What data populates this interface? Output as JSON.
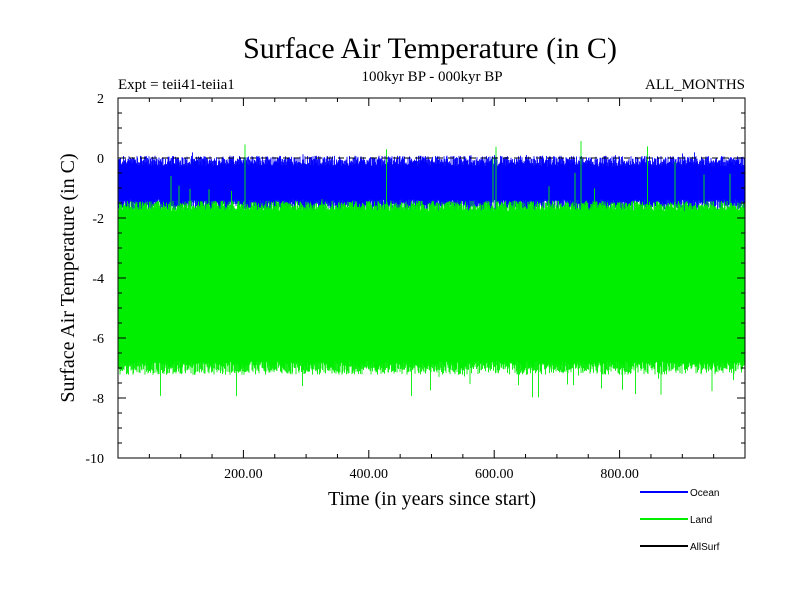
{
  "chart_data": {
    "type": "area",
    "title": "Surface Air Temperature (in C)",
    "subtitle": "100kyr BP - 000kyr BP",
    "annotation_left": "Expt = teii41-teiia1",
    "annotation_right": "ALL_MONTHS",
    "xlabel": "Time (in years since start)",
    "ylabel": "Surface Air Temperature (in C)",
    "xlim": [
      0,
      1000
    ],
    "ylim": [
      -10,
      2
    ],
    "xticks": [
      200,
      400,
      600,
      800
    ],
    "xtick_labels": [
      "200.00",
      "400.00",
      "600.00",
      "800.00"
    ],
    "yticks": [
      -10,
      -8,
      -6,
      -4,
      -2,
      0,
      2
    ],
    "ytick_labels": [
      "-10",
      "-8",
      "-6",
      "-4",
      "-2",
      "0",
      "2"
    ],
    "reference_line": {
      "y": 0,
      "style": "dashed"
    },
    "legend_position": "bottom-right",
    "series": [
      {
        "name": "Ocean",
        "color": "#0000ff",
        "band_typical": [
          -1.6,
          -0.1
        ],
        "extremes": [
          -1.9,
          0.2
        ]
      },
      {
        "name": "Land",
        "color": "#00ee00",
        "band_typical": [
          -7.0,
          -1.6
        ],
        "extremes": [
          -8.0,
          0.6
        ]
      },
      {
        "name": "AllSurf",
        "color": "#000000",
        "band_typical": null,
        "extremes": null
      }
    ]
  }
}
